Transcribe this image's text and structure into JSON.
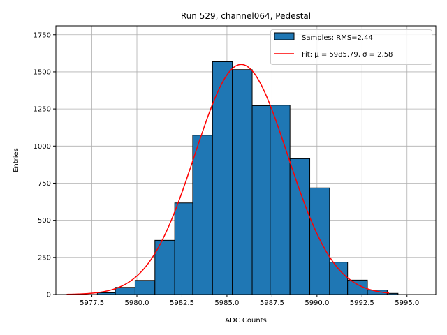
{
  "chart_data": {
    "type": "bar",
    "title": "Run 529, channel064, Pedestal",
    "xlabel": "ADC Counts",
    "ylabel": "Entries",
    "xlim": [
      5975.5,
      5996.6
    ],
    "ylim": [
      0,
      1810
    ],
    "grid": true,
    "legend_position": "top-right",
    "xticks": [
      5977.5,
      5980.0,
      5982.5,
      5985.0,
      5987.5,
      5990.0,
      5992.5,
      5995.0
    ],
    "xtick_labels": [
      "5977.5",
      "5980.0",
      "5982.5",
      "5985.0",
      "5987.5",
      "5990.0",
      "5992.5",
      "5995.0"
    ],
    "yticks": [
      0,
      250,
      500,
      750,
      1000,
      1250,
      1500,
      1750
    ],
    "ytick_labels": [
      "0",
      "250",
      "500",
      "750",
      "1000",
      "1250",
      "1500",
      "1750"
    ],
    "bins": [
      {
        "x0": 5977.8,
        "x1": 5978.8,
        "value": 12
      },
      {
        "x0": 5978.8,
        "x1": 5979.9,
        "value": 48
      },
      {
        "x0": 5979.9,
        "x1": 5981.0,
        "value": 95
      },
      {
        "x0": 5981.0,
        "x1": 5982.1,
        "value": 365
      },
      {
        "x0": 5982.1,
        "x1": 5983.1,
        "value": 617
      },
      {
        "x0": 5983.1,
        "x1": 5984.2,
        "value": 1073
      },
      {
        "x0": 5984.2,
        "x1": 5985.3,
        "value": 1568
      },
      {
        "x0": 5985.3,
        "x1": 5986.4,
        "value": 1515
      },
      {
        "x0": 5986.4,
        "x1": 5987.4,
        "value": 1272
      },
      {
        "x0": 5987.4,
        "x1": 5988.5,
        "value": 1275
      },
      {
        "x0": 5988.5,
        "x1": 5989.6,
        "value": 915
      },
      {
        "x0": 5989.6,
        "x1": 5990.7,
        "value": 718
      },
      {
        "x0": 5990.7,
        "x1": 5991.7,
        "value": 218
      },
      {
        "x0": 5991.7,
        "x1": 5992.8,
        "value": 97
      },
      {
        "x0": 5992.8,
        "x1": 5993.9,
        "value": 30
      },
      {
        "x0": 5993.9,
        "x1": 5994.5,
        "value": 8
      }
    ],
    "fit": {
      "mu": 5985.79,
      "sigma": 2.58,
      "amplitude": 1550,
      "x_range": [
        5976.1,
        5994.0
      ]
    },
    "series": [
      {
        "name": "Samples: RMS=2.44",
        "kind": "histogram",
        "color": "#1f77b4",
        "edge_color": "#000000"
      },
      {
        "name": "Fit: μ = 5985.79, σ = 2.58",
        "kind": "line",
        "color": "#ff0000"
      }
    ]
  }
}
